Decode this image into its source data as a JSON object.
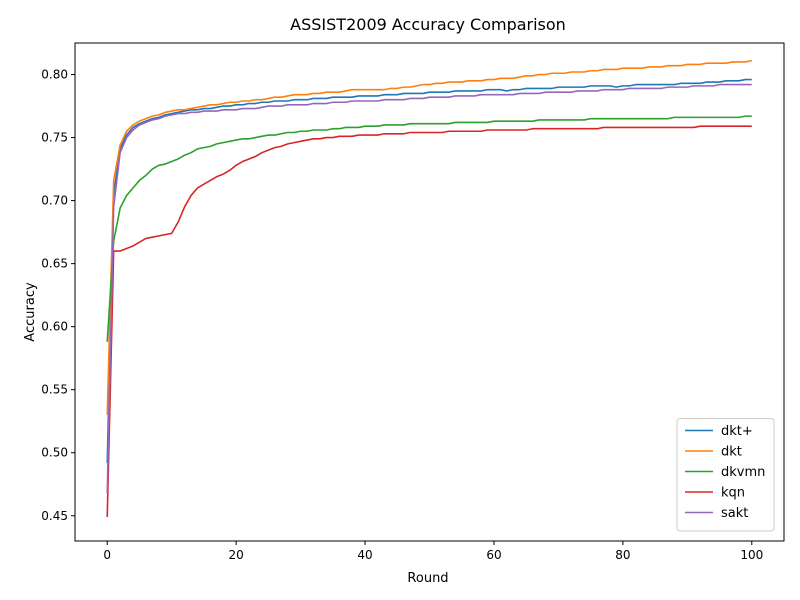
{
  "chart_data": {
    "type": "line",
    "title": "ASSIST2009 Accuracy Comparison",
    "xlabel": "Round",
    "ylabel": "Accuracy",
    "xlim": [
      -5,
      105
    ],
    "ylim": [
      0.43,
      0.825
    ],
    "xticks": [
      0,
      20,
      40,
      60,
      80,
      100
    ],
    "yticks": [
      0.45,
      0.5,
      0.55,
      0.6,
      0.65,
      0.7,
      0.75,
      0.8
    ],
    "xtick_labels": [
      "0",
      "20",
      "40",
      "60",
      "80",
      "100"
    ],
    "ytick_labels": [
      "0.45",
      "0.50",
      "0.55",
      "0.60",
      "0.65",
      "0.70",
      "0.75",
      "0.80"
    ],
    "grid": false,
    "legend_position": "lower-right",
    "x": [
      0,
      1,
      2,
      3,
      4,
      5,
      6,
      7,
      8,
      9,
      10,
      11,
      12,
      13,
      14,
      15,
      16,
      17,
      18,
      19,
      20,
      21,
      22,
      23,
      24,
      25,
      26,
      27,
      28,
      29,
      30,
      31,
      32,
      33,
      34,
      35,
      36,
      37,
      38,
      39,
      40,
      41,
      42,
      43,
      44,
      45,
      46,
      47,
      48,
      49,
      50,
      51,
      52,
      53,
      54,
      55,
      56,
      57,
      58,
      59,
      60,
      61,
      62,
      63,
      64,
      65,
      66,
      67,
      68,
      69,
      70,
      71,
      72,
      73,
      74,
      75,
      76,
      77,
      78,
      79,
      80,
      81,
      82,
      83,
      84,
      85,
      86,
      87,
      88,
      89,
      90,
      91,
      92,
      93,
      94,
      95,
      96,
      97,
      98,
      99,
      100
    ],
    "series": [
      {
        "name": "dkt+",
        "color": "#1f77b4",
        "values": [
          0.492,
          0.705,
          0.741,
          0.752,
          0.758,
          0.761,
          0.763,
          0.765,
          0.766,
          0.768,
          0.769,
          0.77,
          0.771,
          0.772,
          0.772,
          0.773,
          0.773,
          0.774,
          0.775,
          0.775,
          0.776,
          0.776,
          0.777,
          0.777,
          0.778,
          0.778,
          0.779,
          0.779,
          0.779,
          0.78,
          0.78,
          0.78,
          0.781,
          0.781,
          0.781,
          0.782,
          0.782,
          0.782,
          0.782,
          0.783,
          0.783,
          0.783,
          0.783,
          0.784,
          0.784,
          0.784,
          0.785,
          0.785,
          0.785,
          0.785,
          0.786,
          0.786,
          0.786,
          0.786,
          0.787,
          0.787,
          0.787,
          0.787,
          0.787,
          0.788,
          0.788,
          0.788,
          0.787,
          0.788,
          0.788,
          0.789,
          0.789,
          0.789,
          0.789,
          0.789,
          0.79,
          0.79,
          0.79,
          0.79,
          0.79,
          0.791,
          0.791,
          0.791,
          0.791,
          0.79,
          0.791,
          0.791,
          0.792,
          0.792,
          0.792,
          0.792,
          0.792,
          0.792,
          0.792,
          0.793,
          0.793,
          0.793,
          0.793,
          0.794,
          0.794,
          0.794,
          0.795,
          0.795,
          0.795,
          0.796,
          0.796
        ]
      },
      {
        "name": "dkt",
        "color": "#ff7f0e",
        "values": [
          0.53,
          0.716,
          0.744,
          0.755,
          0.76,
          0.763,
          0.765,
          0.767,
          0.768,
          0.77,
          0.771,
          0.772,
          0.772,
          0.773,
          0.774,
          0.775,
          0.776,
          0.776,
          0.777,
          0.778,
          0.778,
          0.779,
          0.779,
          0.78,
          0.78,
          0.781,
          0.782,
          0.782,
          0.783,
          0.784,
          0.784,
          0.784,
          0.785,
          0.785,
          0.786,
          0.786,
          0.786,
          0.787,
          0.788,
          0.788,
          0.788,
          0.788,
          0.788,
          0.788,
          0.789,
          0.789,
          0.79,
          0.79,
          0.791,
          0.792,
          0.792,
          0.793,
          0.793,
          0.794,
          0.794,
          0.794,
          0.795,
          0.795,
          0.795,
          0.796,
          0.796,
          0.797,
          0.797,
          0.797,
          0.798,
          0.799,
          0.799,
          0.8,
          0.8,
          0.801,
          0.801,
          0.801,
          0.802,
          0.802,
          0.802,
          0.803,
          0.803,
          0.804,
          0.804,
          0.804,
          0.805,
          0.805,
          0.805,
          0.805,
          0.806,
          0.806,
          0.806,
          0.807,
          0.807,
          0.807,
          0.808,
          0.808,
          0.808,
          0.809,
          0.809,
          0.809,
          0.809,
          0.81,
          0.81,
          0.81,
          0.811
        ]
      },
      {
        "name": "dkvmn",
        "color": "#2ca02c",
        "values": [
          0.588,
          0.668,
          0.694,
          0.704,
          0.71,
          0.716,
          0.72,
          0.725,
          0.728,
          0.729,
          0.731,
          0.733,
          0.736,
          0.738,
          0.741,
          0.742,
          0.743,
          0.745,
          0.746,
          0.747,
          0.748,
          0.749,
          0.749,
          0.75,
          0.751,
          0.752,
          0.752,
          0.753,
          0.754,
          0.754,
          0.755,
          0.755,
          0.756,
          0.756,
          0.756,
          0.757,
          0.757,
          0.758,
          0.758,
          0.758,
          0.759,
          0.759,
          0.759,
          0.76,
          0.76,
          0.76,
          0.76,
          0.761,
          0.761,
          0.761,
          0.761,
          0.761,
          0.761,
          0.761,
          0.762,
          0.762,
          0.762,
          0.762,
          0.762,
          0.762,
          0.763,
          0.763,
          0.763,
          0.763,
          0.763,
          0.763,
          0.763,
          0.764,
          0.764,
          0.764,
          0.764,
          0.764,
          0.764,
          0.764,
          0.764,
          0.765,
          0.765,
          0.765,
          0.765,
          0.765,
          0.765,
          0.765,
          0.765,
          0.765,
          0.765,
          0.765,
          0.765,
          0.765,
          0.766,
          0.766,
          0.766,
          0.766,
          0.766,
          0.766,
          0.766,
          0.766,
          0.766,
          0.766,
          0.766,
          0.767,
          0.767
        ]
      },
      {
        "name": "kqn",
        "color": "#d62728",
        "values": [
          0.449,
          0.66,
          0.66,
          0.662,
          0.664,
          0.667,
          0.67,
          0.671,
          0.672,
          0.673,
          0.674,
          0.683,
          0.695,
          0.704,
          0.71,
          0.713,
          0.716,
          0.719,
          0.721,
          0.724,
          0.728,
          0.731,
          0.733,
          0.735,
          0.738,
          0.74,
          0.742,
          0.743,
          0.745,
          0.746,
          0.747,
          0.748,
          0.749,
          0.749,
          0.75,
          0.75,
          0.751,
          0.751,
          0.751,
          0.752,
          0.752,
          0.752,
          0.752,
          0.753,
          0.753,
          0.753,
          0.753,
          0.754,
          0.754,
          0.754,
          0.754,
          0.754,
          0.754,
          0.755,
          0.755,
          0.755,
          0.755,
          0.755,
          0.755,
          0.756,
          0.756,
          0.756,
          0.756,
          0.756,
          0.756,
          0.756,
          0.757,
          0.757,
          0.757,
          0.757,
          0.757,
          0.757,
          0.757,
          0.757,
          0.757,
          0.757,
          0.757,
          0.758,
          0.758,
          0.758,
          0.758,
          0.758,
          0.758,
          0.758,
          0.758,
          0.758,
          0.758,
          0.758,
          0.758,
          0.758,
          0.758,
          0.758,
          0.759,
          0.759,
          0.759,
          0.759,
          0.759,
          0.759,
          0.759,
          0.759,
          0.759
        ]
      },
      {
        "name": "sakt",
        "color": "#9467bd",
        "values": [
          0.468,
          0.695,
          0.738,
          0.75,
          0.756,
          0.76,
          0.762,
          0.764,
          0.765,
          0.767,
          0.768,
          0.769,
          0.769,
          0.77,
          0.77,
          0.771,
          0.771,
          0.771,
          0.772,
          0.772,
          0.772,
          0.773,
          0.773,
          0.773,
          0.774,
          0.775,
          0.775,
          0.775,
          0.776,
          0.776,
          0.776,
          0.776,
          0.777,
          0.777,
          0.777,
          0.778,
          0.778,
          0.778,
          0.779,
          0.779,
          0.779,
          0.779,
          0.779,
          0.78,
          0.78,
          0.78,
          0.78,
          0.781,
          0.781,
          0.781,
          0.782,
          0.782,
          0.782,
          0.782,
          0.783,
          0.783,
          0.783,
          0.783,
          0.784,
          0.784,
          0.784,
          0.784,
          0.784,
          0.784,
          0.785,
          0.785,
          0.785,
          0.785,
          0.786,
          0.786,
          0.786,
          0.786,
          0.786,
          0.787,
          0.787,
          0.787,
          0.787,
          0.788,
          0.788,
          0.788,
          0.788,
          0.789,
          0.789,
          0.789,
          0.789,
          0.789,
          0.789,
          0.79,
          0.79,
          0.79,
          0.79,
          0.791,
          0.791,
          0.791,
          0.791,
          0.792,
          0.792,
          0.792,
          0.792,
          0.792,
          0.792
        ]
      }
    ]
  }
}
